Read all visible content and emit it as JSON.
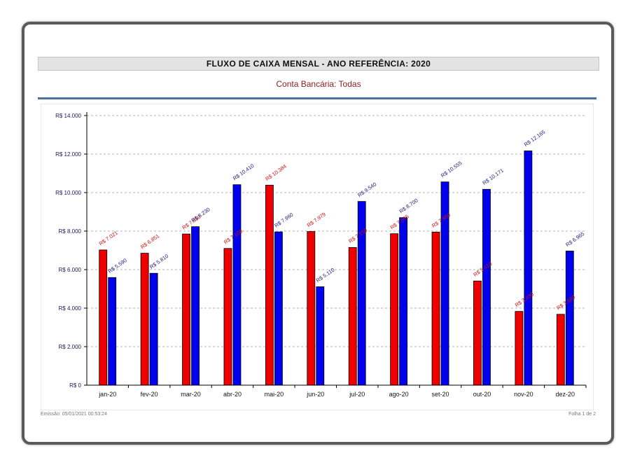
{
  "report": {
    "title": "FLUXO DE CAIXA MENSAL - ANO REFERÊNCIA: 2020",
    "subtitle": "Conta Bancária: Todas",
    "emission": "Emissão: 05/01/2021 00:53:24",
    "page": "Folha 1 de 2"
  },
  "chart_data": {
    "type": "bar",
    "categories": [
      "jan-20",
      "fev-20",
      "mar-20",
      "abr-20",
      "mai-20",
      "jun-20",
      "jul-20",
      "ago-20",
      "set-20",
      "out-20",
      "nov-20",
      "dez-20"
    ],
    "series": [
      {
        "color": "#ee0000",
        "values": [
          7021,
          6851,
          7850,
          7100,
          10384,
          7979,
          7150,
          7865,
          7950,
          5410,
          3830,
          3680
        ],
        "labels": [
          "R$ 7.021",
          "R$ 6.851",
          "R$ 7.850",
          "R$ 7.100",
          "R$ 10.384",
          "R$ 7.979",
          "R$ 7.150",
          "R$ 7.865",
          "R$ 7.950",
          "R$ 5.410",
          "R$ 3.830",
          "R$ 3.680"
        ]
      },
      {
        "color": "#0000ee",
        "values": [
          5590,
          5810,
          8230,
          10410,
          7960,
          5110,
          9540,
          8700,
          10555,
          10171,
          12165,
          6965
        ],
        "labels": [
          "R$ 5.590",
          "R$ 5.810",
          "R$ 8.230",
          "R$ 10.410",
          "R$ 7.960",
          "R$ 5.110",
          "R$ 9.540",
          "R$ 8.700",
          "R$ 10.555",
          "R$ 10.171",
          "R$ 12.165",
          "R$ 6.965"
        ]
      }
    ],
    "yticks": [
      0,
      2000,
      4000,
      6000,
      8000,
      10000,
      12000,
      14000
    ],
    "ytick_labels": [
      "R$ 0",
      "R$ 2.000",
      "R$ 4.000",
      "R$ 6.000",
      "R$ 8.000",
      "R$ 10.000",
      "R$ 12.000",
      "R$ 14.000"
    ],
    "ylim": [
      0,
      14000
    ],
    "grid": true,
    "legend": "none"
  }
}
